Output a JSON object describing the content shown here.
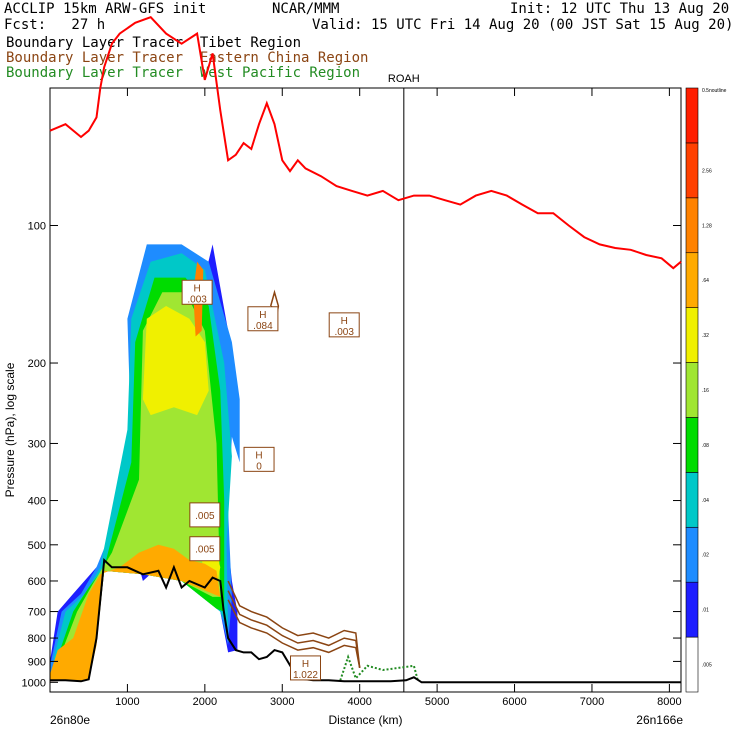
{
  "header": {
    "model": "ACCLIP 15km ARW-GFS init",
    "org": "NCAR/MMM",
    "init": "Init: 12 UTC Thu 13 Aug 20",
    "fcst": "Fcst:   27 h",
    "valid": "Valid: 15 UTC Fri 14 Aug 20 (00 JST Sat 15 Aug 20)"
  },
  "legend": [
    {
      "text": "Boundary Layer Tracer  Tibet Region",
      "color": "#000000"
    },
    {
      "text": "Boundary Layer Tracer  Eastern China Region",
      "color": "#8b4513"
    },
    {
      "text": "Boundary Layer Tracer  West Pacific Region",
      "color": "#228b22"
    }
  ],
  "colors": {
    "tropopause": "#ff0000",
    "terrain": "#000000",
    "eastern_china_contour": "#8b4513",
    "west_pacific_contour": "#228b22"
  },
  "chart_data": {
    "type": "heatmap",
    "xlabel": "Distance (km)",
    "ylabel": "Pressure (hPa), log scale",
    "xlim": [
      0,
      8150
    ],
    "ylim": [
      1050,
      50
    ],
    "x_ticks": [
      1000,
      2000,
      3000,
      4000,
      5000,
      6000,
      7000,
      8000
    ],
    "y_ticks": [
      100,
      200,
      300,
      400,
      500,
      600,
      700,
      800,
      900,
      1000
    ],
    "y_scale": "log",
    "left_end_label": "26n80e",
    "right_end_label": "26n166e",
    "vertical_marker": {
      "label": "ROAH",
      "x": 4570
    },
    "colorbar": {
      "top_label": "0.5noutline",
      "levels": [
        ".005",
        ".01",
        ".02",
        ".04",
        ".08",
        ".16",
        ".32",
        ".64",
        "1.28",
        "2.56"
      ],
      "colors": [
        "#ffffff",
        "#1e1eff",
        "#1e8cff",
        "#00c8c8",
        "#00dc00",
        "#a0e632",
        "#f0f000",
        "#ffaa00",
        "#ff8200",
        "#ff4000",
        "#ff1e00"
      ]
    },
    "tropopause_series": {
      "name": "",
      "x": [
        0,
        200,
        400,
        500,
        600,
        650,
        700,
        800,
        900,
        1100,
        1300,
        1500,
        1700,
        1900,
        2000,
        2100,
        2200,
        2300,
        2400,
        2500,
        2600,
        2700,
        2800,
        2900,
        3000,
        3100,
        3200,
        3300,
        3500,
        3700,
        3900,
        4100,
        4300,
        4500,
        4700,
        4900,
        5100,
        5300,
        5500,
        5700,
        5900,
        6100,
        6300,
        6500,
        6700,
        6900,
        7100,
        7300,
        7500,
        7700,
        7900,
        8050,
        8150
      ],
      "y": [
        62,
        60,
        64,
        62,
        58,
        50,
        45,
        40,
        38,
        36,
        35,
        38,
        40,
        38,
        48,
        42,
        56,
        72,
        70,
        66,
        68,
        60,
        54,
        60,
        72,
        76,
        72,
        75,
        78,
        82,
        84,
        86,
        84,
        88,
        86,
        86,
        88,
        90,
        86,
        84,
        86,
        90,
        94,
        94,
        100,
        106,
        110,
        112,
        113,
        116,
        118,
        124,
        120
      ]
    },
    "terrain_series": {
      "name": "",
      "x": [
        0,
        200,
        400,
        500,
        600,
        700,
        800,
        1000,
        1200,
        1400,
        1500,
        1600,
        1700,
        1800,
        2000,
        2100,
        2200,
        2240,
        2300,
        2400,
        2500,
        2600,
        2700,
        2800,
        2900,
        3000,
        3200,
        3400,
        3600,
        3800,
        4000,
        4200,
        4400,
        4600,
        4700,
        4800,
        5000,
        6000,
        7000,
        8000,
        8150
      ],
      "y": [
        990,
        990,
        995,
        985,
        800,
        540,
        560,
        560,
        580,
        570,
        620,
        560,
        620,
        600,
        620,
        590,
        600,
        690,
        800,
        850,
        860,
        860,
        890,
        880,
        850,
        860,
        980,
        990,
        990,
        995,
        995,
        995,
        995,
        990,
        975,
        1000,
        1000,
        1000,
        1000,
        1000,
        1000
      ]
    },
    "h_labels": [
      {
        "x": 1900,
        "y": 140,
        "line1": "H",
        "line2": ".003"
      },
      {
        "x": 2750,
        "y": 160,
        "line1": "H",
        "line2": ".084"
      },
      {
        "x": 3800,
        "y": 165,
        "line1": "H",
        "line2": ".003"
      },
      {
        "x": 2700,
        "y": 325,
        "line1": "H",
        "line2": "0"
      },
      {
        "x": 2000,
        "y": 430,
        "line1": "",
        "line2": ".005"
      },
      {
        "x": 2000,
        "y": 510,
        "line1": "",
        "line2": ".005"
      },
      {
        "x": 3300,
        "y": 930,
        "line1": "H",
        "line2": "1.022"
      }
    ]
  }
}
